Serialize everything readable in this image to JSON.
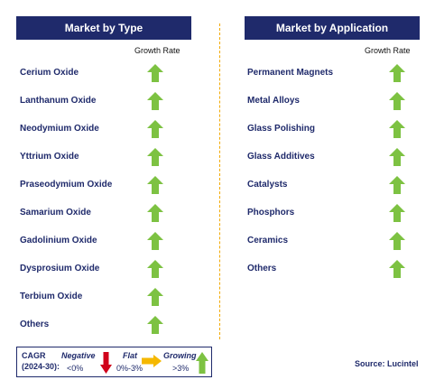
{
  "type_panel": {
    "title": "Market by Type",
    "growth_label": "Growth Rate",
    "items": [
      {
        "label": "Cerium Oxide",
        "trend": "growing"
      },
      {
        "label": "Lanthanum Oxide",
        "trend": "growing"
      },
      {
        "label": "Neodymium Oxide",
        "trend": "growing"
      },
      {
        "label": "Yttrium Oxide",
        "trend": "growing"
      },
      {
        "label": "Praseodymium Oxide",
        "trend": "growing"
      },
      {
        "label": "Samarium Oxide",
        "trend": "growing"
      },
      {
        "label": "Gadolinium Oxide",
        "trend": "growing"
      },
      {
        "label": "Dysprosium Oxide",
        "trend": "growing"
      },
      {
        "label": "Terbium Oxide",
        "trend": "growing"
      },
      {
        "label": "Others",
        "trend": "growing"
      }
    ]
  },
  "application_panel": {
    "title": "Market by Application",
    "growth_label": "Growth Rate",
    "items": [
      {
        "label": "Permanent Magnets",
        "trend": "growing"
      },
      {
        "label": "Metal Alloys",
        "trend": "growing"
      },
      {
        "label": "Glass Polishing",
        "trend": "growing"
      },
      {
        "label": "Glass Additives",
        "trend": "growing"
      },
      {
        "label": "Catalysts",
        "trend": "growing"
      },
      {
        "label": "Phosphors",
        "trend": "growing"
      },
      {
        "label": "Ceramics",
        "trend": "growing"
      },
      {
        "label": "Others",
        "trend": "growing"
      }
    ]
  },
  "legend": {
    "cagr_line1": "CAGR",
    "cagr_line2": "(2024-30):",
    "negative_label": "Negative",
    "negative_range": "<0%",
    "flat_label": "Flat",
    "flat_range": "0%-3%",
    "growing_label": "Growing",
    "growing_range": ">3%"
  },
  "source": "Source: Lucintel",
  "colors": {
    "header_bg": "#1f2a6b",
    "growing_arrow": "#7dc242",
    "negative_arrow": "#d0021b",
    "flat_arrow": "#f5b800",
    "divider": "#f2a900"
  }
}
